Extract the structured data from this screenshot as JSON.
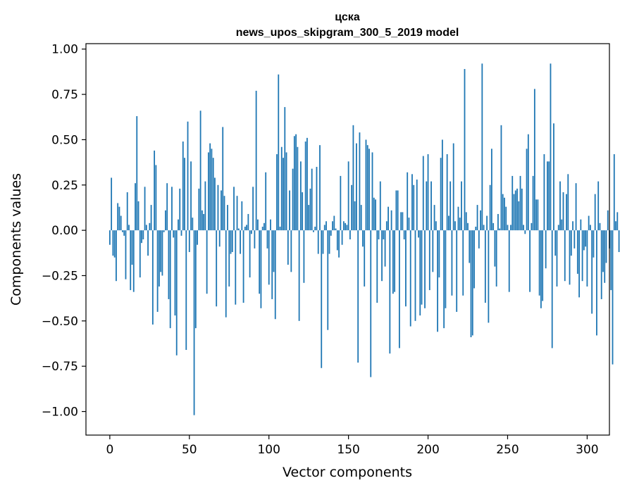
{
  "chart_data": {
    "type": "bar",
    "title": "цска",
    "subtitle": "news_upos_skipgram_300_5_2019 model",
    "xlabel": "Vector components",
    "ylabel": "Components values",
    "xlim": [
      -15,
      314
    ],
    "ylim": [
      -1.13,
      1.03
    ],
    "x_ticks": [
      0,
      50,
      100,
      150,
      200,
      250,
      300
    ],
    "x_tick_labels": [
      "0",
      "50",
      "100",
      "150",
      "200",
      "250",
      "300"
    ],
    "y_ticks": [
      -1.0,
      -0.75,
      -0.5,
      -0.25,
      0.0,
      0.25,
      0.5,
      0.75,
      1.0
    ],
    "y_tick_labels": [
      "−1.00",
      "−0.75",
      "−0.50",
      "−0.25",
      "0.00",
      "0.25",
      "0.50",
      "0.75",
      "1.00"
    ],
    "bar_color": "#1f77b4",
    "values": [
      -0.08,
      0.29,
      -0.14,
      -0.15,
      -0.28,
      0.15,
      0.13,
      0.08,
      -0.01,
      -0.03,
      -0.27,
      0.21,
      0.03,
      -0.33,
      -0.19,
      -0.34,
      0.26,
      0.63,
      0.16,
      -0.26,
      -0.07,
      -0.05,
      0.24,
      0.03,
      -0.14,
      0.04,
      0.14,
      -0.52,
      0.44,
      0.36,
      -0.45,
      -0.31,
      -0.23,
      -0.25,
      -0.01,
      0.11,
      0.26,
      -0.38,
      -0.54,
      0.24,
      -0.04,
      -0.47,
      -0.69,
      0.06,
      0.23,
      -0.03,
      0.49,
      0.4,
      -0.66,
      0.6,
      -0.12,
      0.38,
      0.07,
      -1.02,
      -0.54,
      -0.08,
      0.23,
      0.66,
      0.11,
      0.09,
      0.27,
      -0.35,
      0.43,
      0.48,
      0.45,
      0.4,
      0.29,
      -0.42,
      0.25,
      -0.09,
      0.22,
      0.57,
      0.19,
      -0.48,
      0.14,
      -0.31,
      -0.13,
      -0.12,
      0.24,
      -0.41,
      0.19,
      0.01,
      -0.13,
      0.16,
      -0.4,
      0.02,
      0.03,
      0.09,
      -0.26,
      -0.02,
      0.24,
      -0.1,
      0.77,
      0.06,
      -0.35,
      -0.43,
      0.02,
      0.04,
      0.32,
      -0.1,
      -0.3,
      0.06,
      -0.38,
      -0.23,
      -0.49,
      0.42,
      0.86,
      0.02,
      0.46,
      0.4,
      0.68,
      0.43,
      -0.19,
      0.22,
      -0.23,
      0.34,
      0.52,
      0.53,
      0.46,
      -0.5,
      0.38,
      0.21,
      -0.29,
      0.49,
      0.51,
      0.14,
      0.23,
      0.34,
      -0.01,
      0.02,
      0.35,
      -0.13,
      0.47,
      -0.76,
      -0.13,
      0.03,
      0.05,
      -0.55,
      -0.13,
      -0.03,
      0.05,
      0.08,
      0.01,
      -0.11,
      -0.15,
      0.3,
      -0.08,
      0.05,
      0.04,
      0.03,
      0.38,
      -0.05,
      0.25,
      0.58,
      0.16,
      0.48,
      -0.73,
      0.54,
      0.14,
      -0.09,
      -0.31,
      0.5,
      0.47,
      0.45,
      -0.81,
      0.43,
      0.18,
      0.17,
      -0.4,
      -0.05,
      0.27,
      -0.28,
      -0.05,
      -0.2,
      0.05,
      0.13,
      -0.68,
      0.11,
      -0.35,
      -0.34,
      0.22,
      0.22,
      -0.65,
      0.1,
      0.1,
      -0.05,
      -0.42,
      0.32,
      0.07,
      -0.53,
      0.31,
      0.25,
      -0.5,
      0.28,
      -0.04,
      -0.47,
      -0.41,
      0.41,
      -0.43,
      0.27,
      0.42,
      -0.33,
      0.27,
      -0.23,
      0.14,
      0.05,
      -0.56,
      -0.26,
      0.4,
      0.5,
      -0.54,
      -0.43,
      0.42,
      0.08,
      0.27,
      -0.36,
      0.48,
      0.05,
      -0.45,
      0.13,
      0.07,
      0.27,
      -0.36,
      0.89,
      0.1,
      0.04,
      -0.18,
      -0.59,
      -0.58,
      -0.32,
      0.02,
      0.14,
      -0.1,
      0.11,
      0.92,
      0.03,
      -0.4,
      0.08,
      -0.51,
      0.25,
      0.45,
      0.04,
      -0.2,
      -0.31,
      0.09,
      0.01,
      0.58,
      0.2,
      0.18,
      0.13,
      0.03,
      -0.34,
      0.03,
      0.3,
      0.2,
      0.22,
      0.23,
      0.16,
      0.3,
      0.23,
      0.03,
      -0.02,
      0.45,
      0.53,
      -0.34,
      0.04,
      0.3,
      0.78,
      0.17,
      0.17,
      -0.36,
      -0.43,
      -0.39,
      0.42,
      -0.21,
      0.38,
      0.38,
      0.92,
      -0.65,
      0.59,
      -0.14,
      -0.31,
      0.03,
      0.27,
      0.06,
      0.21,
      -0.28,
      0.2,
      0.31,
      -0.3,
      -0.14,
      0.05,
      -0.1,
      0.26,
      -0.24,
      -0.37,
      0.06,
      -0.28,
      -0.11,
      -0.09,
      -0.31,
      0.08,
      0.03,
      -0.46,
      -0.15,
      0.2,
      -0.58,
      0.27,
      0.04,
      -0.38,
      -0.23,
      -0.29,
      -0.18,
      0.11,
      -0.1,
      -0.33,
      -0.74,
      0.42,
      0.05,
      0.1,
      -0.12
    ]
  }
}
